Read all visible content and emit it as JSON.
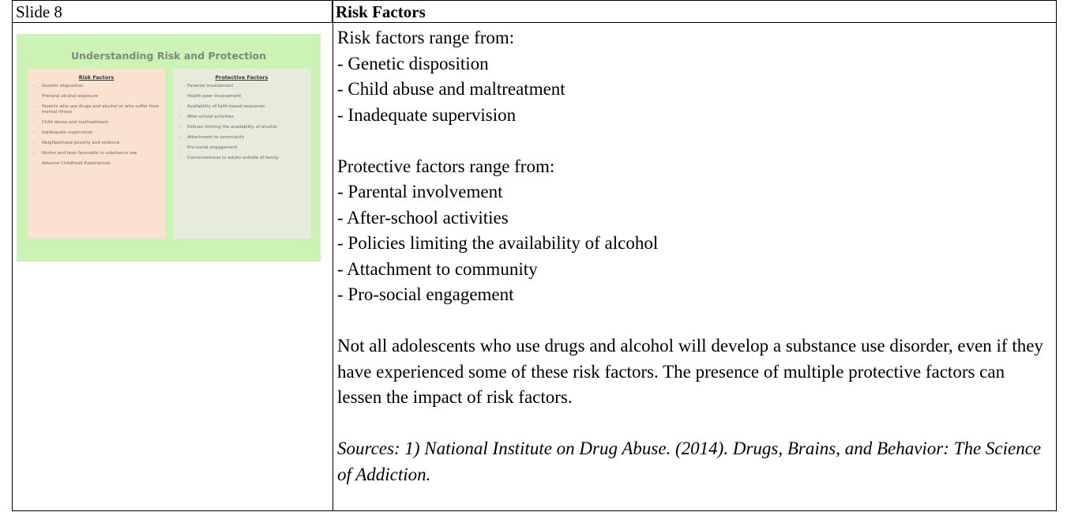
{
  "left_column": {
    "header": "Slide 8",
    "slide": {
      "title": "Understanding Risk and Protection",
      "risk_heading": "Risk Factors",
      "risk_items": [
        "Genetic disposition",
        "Prenatal alcohol exposure",
        "Parents who use drugs and alcohol or who suffer from mental illness",
        "Child abuse and maltreatment",
        "Inadequate supervision",
        "Neighborhood poverty and violence",
        "Norms and laws favorable to substance use",
        "Adverse Childhood Experiences"
      ],
      "protective_heading": "Protective Factors",
      "protective_items": [
        "Parental involvement",
        "Health peer involvement",
        "Availability of faith-based resources",
        "After-school activities",
        "Policies limiting the availability of alcohol",
        "Attachment to community",
        "Pro-social engagement",
        "Connectedness to adults outside of family"
      ]
    }
  },
  "right_column": {
    "header": "Risk Factors",
    "risk_intro": "Risk factors range from:",
    "risk_items": [
      "- Genetic disposition",
      "- Child abuse and maltreatment",
      "- Inadequate supervision"
    ],
    "protective_intro": "Protective factors range from:",
    "protective_items": [
      "- Parental involvement",
      "- After-school activities",
      "- Policies limiting the availability of alcohol",
      "- Attachment to community",
      "- Pro-social engagement"
    ],
    "paragraph": "Not all adolescents who use drugs and alcohol will develop a substance use disorder, even if they have experienced some of these risk factors. The presence of multiple protective factors can lessen the impact of risk factors.",
    "sources": "Sources: 1) National Institute on Drug Abuse. (2014). Drugs, Brains, and Behavior: The Science of Addiction."
  }
}
